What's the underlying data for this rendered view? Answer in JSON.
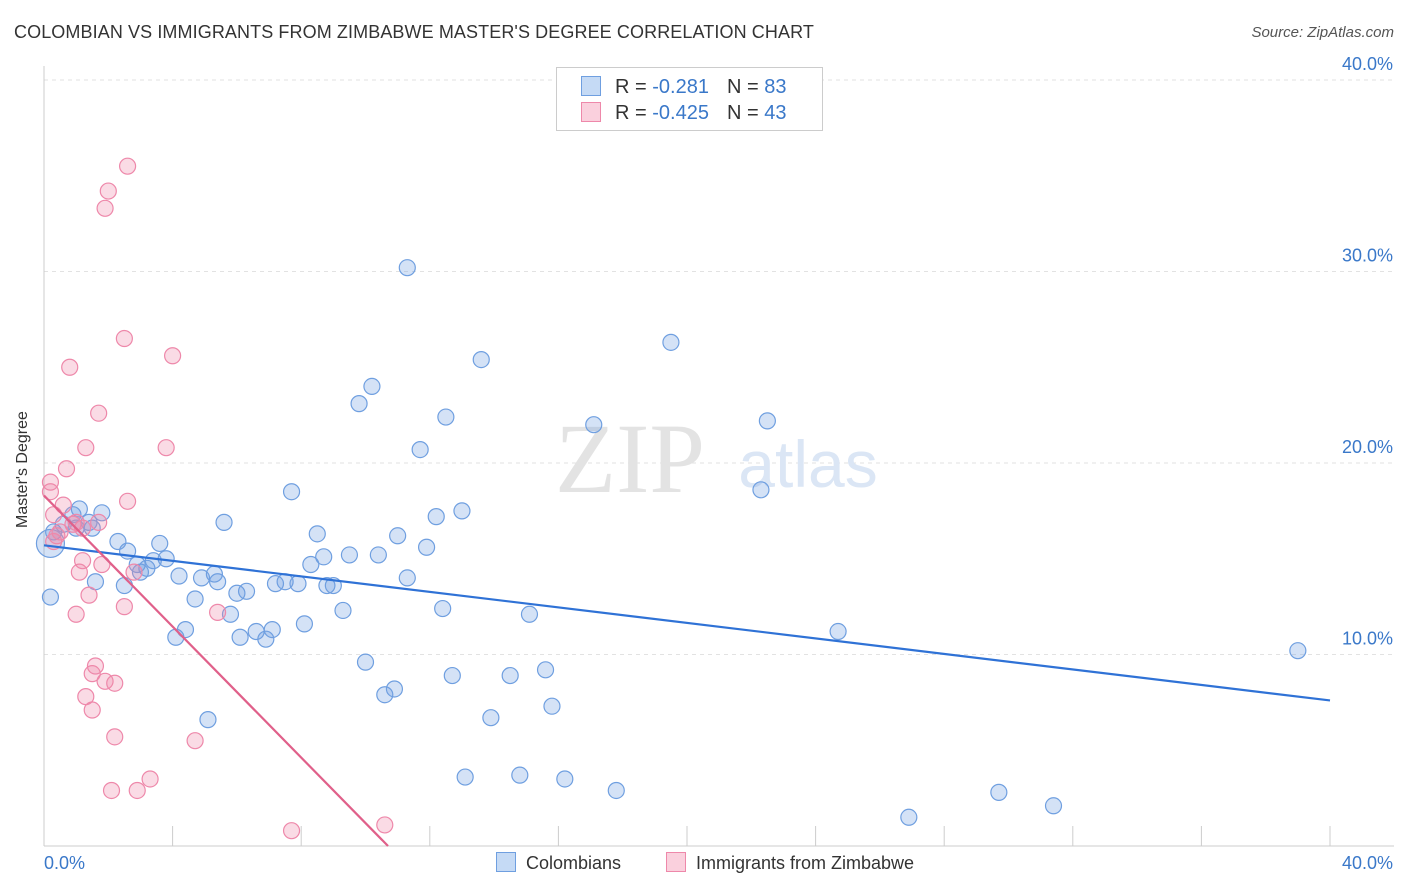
{
  "header": {
    "title": "COLOMBIAN VS IMMIGRANTS FROM ZIMBABWE MASTER'S DEGREE CORRELATION CHART",
    "source": "Source: ZipAtlas.com"
  },
  "watermark": {
    "zip": "ZIP",
    "atlas": "atlas"
  },
  "legend": {
    "rows": [
      {
        "r_label": "R = ",
        "r_value": "-0.281",
        "n_label": "N = ",
        "n_value": "83",
        "color": "#6f9fe0"
      },
      {
        "r_label": "R = ",
        "r_value": "-0.425",
        "n_label": "N = ",
        "n_value": "43",
        "color": "#ee88aa"
      }
    ]
  },
  "bottom_legend": {
    "series1": "Colombians",
    "series2": "Immigrants from Zimbabwe"
  },
  "chart_data": {
    "type": "scatter",
    "title": "COLOMBIAN VS IMMIGRANTS FROM ZIMBABWE MASTER'S DEGREE CORRELATION CHART",
    "xlabel": "",
    "ylabel": "Master's Degree",
    "xlim": [
      0,
      40
    ],
    "ylim": [
      0,
      40
    ],
    "x_tick_labels": [
      "0.0%",
      "40.0%"
    ],
    "y_tick_labels": [
      {
        "value": 10,
        "label": "10.0%"
      },
      {
        "value": 20,
        "label": "20.0%"
      },
      {
        "value": 30,
        "label": "30.0%"
      },
      {
        "value": 40,
        "label": "40.0%"
      }
    ],
    "grid": true,
    "series": [
      {
        "name": "Colombians",
        "color": "#6f9fe0",
        "line_color": "#2f72d6",
        "trend": {
          "x0": 0,
          "y0": 15.7,
          "x1": 40,
          "y1": 7.6
        },
        "points": [
          [
            0.3,
            16.4
          ],
          [
            0.6,
            16.8
          ],
          [
            0.9,
            17.3
          ],
          [
            1.1,
            17.6
          ],
          [
            1.4,
            16.9
          ],
          [
            1.5,
            16.6
          ],
          [
            1.8,
            17.4
          ],
          [
            1.6,
            13.8
          ],
          [
            2.3,
            15.9
          ],
          [
            2.6,
            15.4
          ],
          [
            2.9,
            14.7
          ],
          [
            2.5,
            13.6
          ],
          [
            3.0,
            14.3
          ],
          [
            3.2,
            14.5
          ],
          [
            3.4,
            14.9
          ],
          [
            3.6,
            15.8
          ],
          [
            3.8,
            15.0
          ],
          [
            4.2,
            14.1
          ],
          [
            4.1,
            10.9
          ],
          [
            4.4,
            11.3
          ],
          [
            4.7,
            12.9
          ],
          [
            4.9,
            14.0
          ],
          [
            5.1,
            6.6
          ],
          [
            5.4,
            13.8
          ],
          [
            5.6,
            16.9
          ],
          [
            5.8,
            12.1
          ],
          [
            6.0,
            13.2
          ],
          [
            6.1,
            10.9
          ],
          [
            6.3,
            13.3
          ],
          [
            6.6,
            11.2
          ],
          [
            6.9,
            10.8
          ],
          [
            7.1,
            11.3
          ],
          [
            7.2,
            13.7
          ],
          [
            7.5,
            13.8
          ],
          [
            7.7,
            18.5
          ],
          [
            7.9,
            13.7
          ],
          [
            8.1,
            11.6
          ],
          [
            8.3,
            14.7
          ],
          [
            8.5,
            16.3
          ],
          [
            8.7,
            15.1
          ],
          [
            8.8,
            13.6
          ],
          [
            9.0,
            13.6
          ],
          [
            9.3,
            12.3
          ],
          [
            9.5,
            15.2
          ],
          [
            9.8,
            23.1
          ],
          [
            10.0,
            9.6
          ],
          [
            10.2,
            24.0
          ],
          [
            10.4,
            15.2
          ],
          [
            10.6,
            7.9
          ],
          [
            10.9,
            8.2
          ],
          [
            11.0,
            16.2
          ],
          [
            11.3,
            14.0
          ],
          [
            11.3,
            30.2
          ],
          [
            11.7,
            20.7
          ],
          [
            11.9,
            15.6
          ],
          [
            12.2,
            17.2
          ],
          [
            12.4,
            12.4
          ],
          [
            12.5,
            22.4
          ],
          [
            12.7,
            8.9
          ],
          [
            13.0,
            17.5
          ],
          [
            13.1,
            3.6
          ],
          [
            13.6,
            25.4
          ],
          [
            13.9,
            6.7
          ],
          [
            14.5,
            8.9
          ],
          [
            14.8,
            3.7
          ],
          [
            15.1,
            12.1
          ],
          [
            15.6,
            9.2
          ],
          [
            15.8,
            7.3
          ],
          [
            16.2,
            3.5
          ],
          [
            17.1,
            22.0
          ],
          [
            17.8,
            2.9
          ],
          [
            19.5,
            26.3
          ],
          [
            22.3,
            18.6
          ],
          [
            22.5,
            22.2
          ],
          [
            24.7,
            11.2
          ],
          [
            26.9,
            1.5
          ],
          [
            29.7,
            2.8
          ],
          [
            31.4,
            2.1
          ],
          [
            39.0,
            10.2
          ],
          [
            0.2,
            13.0
          ],
          [
            0.2,
            15.8
          ],
          [
            1.0,
            16.6
          ],
          [
            5.3,
            14.2
          ]
        ]
      },
      {
        "name": "Immigrants from Zimbabwe",
        "color": "#ee88aa",
        "line_color": "#e0608a",
        "trend": {
          "x0": 0,
          "y0": 18.3,
          "x1": 10.7,
          "y1": 0
        },
        "points": [
          [
            0.2,
            18.5
          ],
          [
            0.2,
            19.0
          ],
          [
            0.3,
            17.3
          ],
          [
            0.4,
            16.2
          ],
          [
            0.5,
            16.4
          ],
          [
            0.6,
            17.8
          ],
          [
            0.7,
            19.7
          ],
          [
            0.8,
            25.0
          ],
          [
            0.9,
            16.8
          ],
          [
            1.0,
            16.9
          ],
          [
            1.0,
            12.1
          ],
          [
            1.1,
            14.3
          ],
          [
            1.2,
            14.9
          ],
          [
            1.3,
            7.8
          ],
          [
            1.3,
            20.8
          ],
          [
            1.4,
            13.1
          ],
          [
            1.5,
            7.1
          ],
          [
            1.5,
            9.0
          ],
          [
            1.6,
            9.4
          ],
          [
            1.7,
            16.9
          ],
          [
            1.7,
            22.6
          ],
          [
            1.8,
            14.7
          ],
          [
            1.9,
            8.6
          ],
          [
            1.9,
            33.3
          ],
          [
            2.0,
            34.2
          ],
          [
            2.1,
            2.9
          ],
          [
            2.2,
            5.7
          ],
          [
            2.2,
            8.5
          ],
          [
            2.5,
            26.5
          ],
          [
            2.5,
            12.5
          ],
          [
            2.6,
            35.5
          ],
          [
            2.6,
            18.0
          ],
          [
            2.8,
            14.3
          ],
          [
            2.9,
            2.9
          ],
          [
            3.3,
            3.5
          ],
          [
            3.8,
            20.8
          ],
          [
            4.0,
            25.6
          ],
          [
            4.7,
            5.5
          ],
          [
            5.4,
            12.2
          ],
          [
            7.7,
            0.8
          ],
          [
            10.6,
            1.1
          ],
          [
            0.3,
            15.9
          ],
          [
            1.2,
            16.6
          ]
        ]
      }
    ]
  }
}
